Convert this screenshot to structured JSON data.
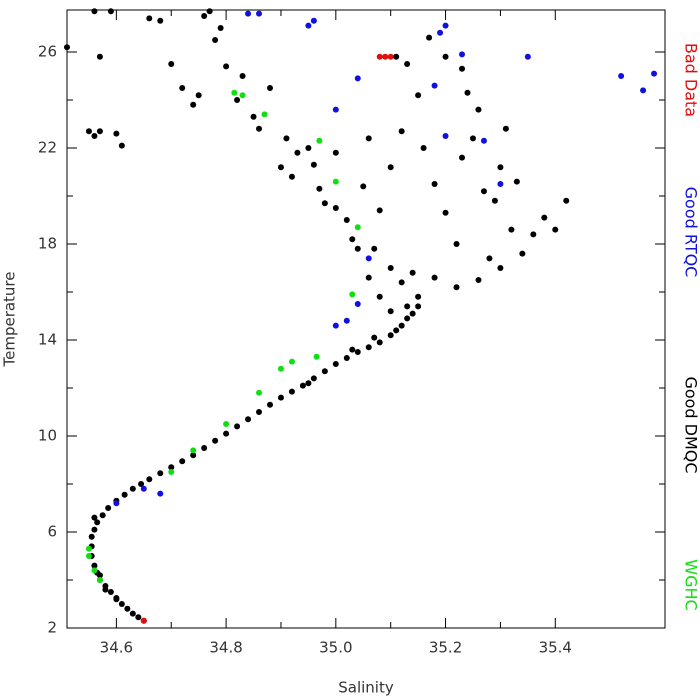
{
  "chart_data": {
    "type": "scatter",
    "x_label": "Salinity",
    "y_label": "Temperature",
    "xlim": [
      34.51,
      35.6
    ],
    "ylim": [
      2,
      27.75
    ],
    "xticks": [
      {
        "value": 34.6,
        "label": "34.6"
      },
      {
        "value": 34.8,
        "label": "34.8"
      },
      {
        "value": 35.0,
        "label": "35.0"
      },
      {
        "value": 35.2,
        "label": "35.2"
      },
      {
        "value": 35.4,
        "label": "35.4"
      }
    ],
    "yticks": [
      2,
      6,
      10,
      14,
      18,
      22,
      26
    ],
    "legend_position": "right",
    "series": [
      {
        "name": "Good DMQC",
        "color": "#000000",
        "x": [
          34.65,
          34.64,
          34.63,
          34.62,
          34.61,
          34.6,
          34.59,
          34.58,
          34.57,
          34.565,
          34.56,
          34.555,
          34.555,
          34.555,
          34.56,
          34.565,
          34.575,
          34.585,
          34.6,
          34.615,
          34.63,
          34.645,
          34.66,
          34.68,
          34.7,
          34.72,
          34.74,
          34.76,
          34.78,
          34.8,
          34.82,
          34.84,
          34.86,
          34.88,
          34.9,
          34.92,
          34.94,
          34.96,
          34.98,
          35.0,
          35.02,
          35.04,
          35.06,
          35.08,
          35.1,
          35.11,
          35.12,
          35.13,
          35.14,
          35.15,
          34.58,
          34.6,
          34.57,
          34.56,
          34.95,
          35.03,
          35.07,
          34.56,
          34.59,
          34.66,
          34.68,
          34.76,
          34.77,
          34.51,
          34.57,
          34.55,
          34.56,
          34.57,
          34.6,
          34.61,
          34.7,
          34.72,
          34.74,
          34.75,
          34.78,
          34.79,
          34.8,
          34.82,
          34.83,
          34.85,
          34.88,
          34.86,
          34.9,
          34.91,
          34.92,
          34.93,
          34.95,
          34.97,
          34.96,
          34.98,
          35.0,
          35.02,
          35.03,
          35.05,
          35.06,
          35.08,
          35.07,
          35.1,
          35.12,
          35.11,
          35.13,
          35.15,
          35.16,
          35.18,
          35.2,
          35.22,
          35.23,
          35.24,
          35.25,
          35.26,
          35.27,
          35.28,
          35.29,
          35.3,
          35.31,
          35.32,
          35.33,
          35.34,
          35.36,
          35.38,
          35.4,
          35.42,
          35.2,
          35.23,
          35.17,
          35.14,
          35.12,
          35.1,
          35.08,
          35.06,
          35.18,
          35.22,
          35.26,
          35.3,
          35.04,
          35.0,
          35.15,
          35.13,
          35.1
        ],
        "values": [
          2.3,
          2.45,
          2.6,
          2.8,
          3.0,
          3.25,
          3.5,
          3.75,
          4.0,
          4.3,
          4.6,
          5.0,
          5.4,
          5.8,
          6.1,
          6.4,
          6.7,
          7.0,
          7.3,
          7.55,
          7.8,
          8.0,
          8.2,
          8.45,
          8.7,
          8.95,
          9.2,
          9.5,
          9.8,
          10.1,
          10.4,
          10.7,
          11.0,
          11.3,
          11.6,
          11.85,
          12.1,
          12.4,
          12.7,
          13.0,
          13.25,
          13.5,
          13.7,
          13.9,
          14.2,
          14.4,
          14.6,
          14.9,
          15.1,
          15.4,
          3.6,
          3.2,
          4.2,
          6.6,
          12.2,
          13.6,
          14.1,
          27.7,
          27.7,
          27.4,
          27.3,
          27.5,
          27.7,
          26.2,
          25.8,
          22.7,
          22.5,
          22.7,
          22.6,
          22.1,
          25.5,
          24.5,
          23.8,
          24.2,
          26.5,
          27.0,
          25.4,
          24.0,
          25.0,
          23.3,
          24.5,
          22.8,
          21.2,
          22.4,
          20.8,
          21.8,
          22.0,
          20.3,
          21.3,
          19.7,
          21.8,
          19.0,
          18.2,
          20.4,
          22.4,
          19.4,
          17.8,
          21.2,
          22.7,
          25.8,
          25.5,
          24.2,
          22.0,
          20.5,
          19.3,
          18.0,
          21.6,
          24.3,
          22.4,
          23.6,
          20.2,
          17.4,
          19.8,
          21.2,
          22.8,
          18.6,
          20.6,
          17.6,
          18.4,
          19.1,
          18.6,
          19.8,
          25.8,
          25.3,
          26.6,
          16.8,
          16.4,
          17.0,
          15.8,
          16.6,
          16.6,
          16.2,
          16.5,
          17.0,
          17.8,
          19.5,
          15.8,
          15.4,
          15.2
        ]
      },
      {
        "name": "Good RTQC",
        "color": "#1010e0",
        "x": [
          34.84,
          34.86,
          34.96,
          34.95,
          35.2,
          35.19,
          35.35,
          35.58,
          35.56,
          35.52,
          35.04,
          35.2,
          35.27,
          35.3,
          35.06,
          35.04,
          35.0,
          35.02,
          34.68,
          34.65,
          34.6,
          35.18,
          35.23,
          35.0
        ],
        "values": [
          27.6,
          27.6,
          27.3,
          27.1,
          27.1,
          26.8,
          25.8,
          25.1,
          24.4,
          25.0,
          24.9,
          22.5,
          22.3,
          20.5,
          17.4,
          15.5,
          14.6,
          14.8,
          7.6,
          7.8,
          7.2,
          24.6,
          25.9,
          23.6
        ]
      },
      {
        "name": "WGHC",
        "color": "#10e010",
        "x": [
          34.815,
          34.83,
          34.87,
          34.97,
          35.0,
          35.04,
          35.03,
          34.55,
          34.56,
          34.55,
          34.9,
          34.92,
          34.74,
          34.8,
          34.7,
          34.86,
          34.57,
          34.965
        ],
        "values": [
          24.3,
          24.2,
          23.4,
          22.3,
          20.6,
          18.7,
          15.9,
          5.3,
          4.4,
          5.0,
          12.8,
          13.1,
          9.4,
          10.5,
          8.5,
          11.8,
          4.0,
          13.3
        ]
      },
      {
        "name": "Bad Data",
        "color": "#e01010",
        "x": [
          35.08,
          35.09,
          35.1,
          34.65
        ],
        "values": [
          25.8,
          25.8,
          25.8,
          2.3
        ]
      }
    ]
  }
}
